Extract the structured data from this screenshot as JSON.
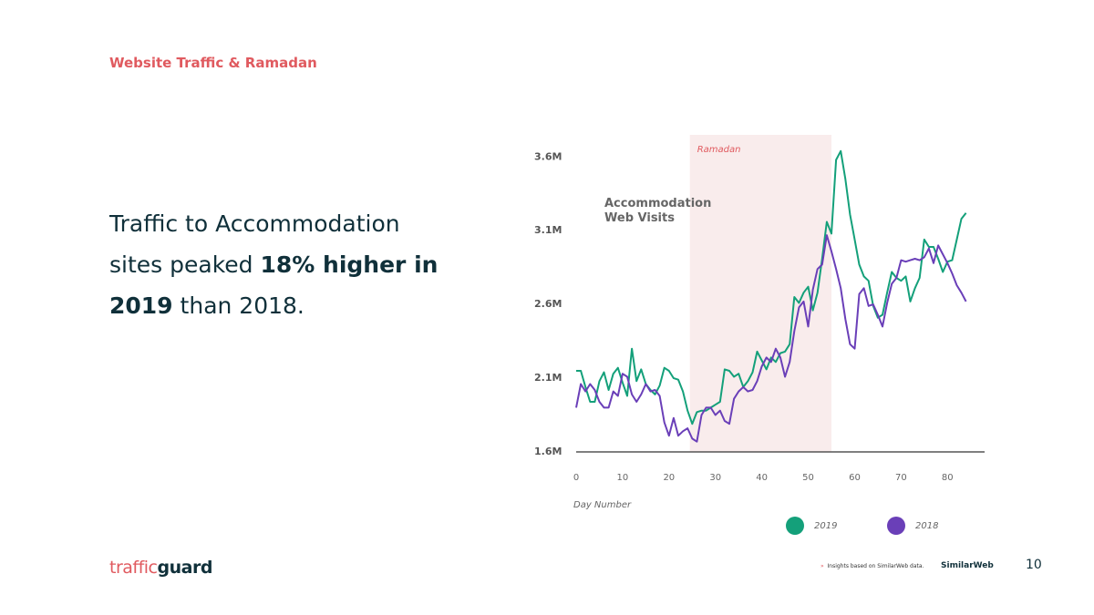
{
  "slide_title": "Website Traffic & Ramadan",
  "headline": [
    "Traffic to Accommodation sites peaked ",
    "18% higher in 2019",
    " than 2018."
  ],
  "logo": [
    "traffic",
    "guard"
  ],
  "footnote": "Insights based on SimilarWeb data.",
  "source_brand": "SimilarWeb",
  "page_number": "10",
  "chart_data": {
    "type": "line",
    "annotation": "Accommodation Web Visits",
    "x_label": "Day Number",
    "shaded_region": {
      "label": "Ramadan",
      "start": 24.5,
      "end": 55
    },
    "x": [
      0,
      1,
      2,
      3,
      4,
      5,
      6,
      7,
      8,
      9,
      10,
      11,
      12,
      13,
      14,
      15,
      16,
      17,
      18,
      19,
      20,
      21,
      22,
      23,
      24,
      25,
      26,
      27,
      28,
      29,
      30,
      31,
      32,
      33,
      34,
      35,
      36,
      37,
      38,
      39,
      40,
      41,
      42,
      43,
      44,
      45,
      46,
      47,
      48,
      49,
      50,
      51,
      52,
      53,
      54,
      55,
      56,
      57,
      58,
      59,
      60,
      61,
      62,
      63,
      64,
      65,
      66,
      67,
      68,
      69,
      70,
      71,
      72,
      73,
      74,
      75,
      76,
      77,
      78,
      79,
      80,
      81,
      82,
      83,
      84
    ],
    "series": [
      {
        "name": "2019",
        "color": "#14a07a",
        "values": [
          2.15,
          2.15,
          2.04,
          1.94,
          1.94,
          2.08,
          2.14,
          2.02,
          2.13,
          2.17,
          2.07,
          1.98,
          2.3,
          2.08,
          2.16,
          2.06,
          2.02,
          1.99,
          2.05,
          2.17,
          2.15,
          2.1,
          2.09,
          2.01,
          1.88,
          1.79,
          1.87,
          1.88,
          1.88,
          1.9,
          1.92,
          1.94,
          2.16,
          2.15,
          2.11,
          2.13,
          2.04,
          2.08,
          2.14,
          2.28,
          2.22,
          2.16,
          2.24,
          2.21,
          2.27,
          2.28,
          2.33,
          2.65,
          2.61,
          2.68,
          2.72,
          2.56,
          2.68,
          2.91,
          3.16,
          3.08,
          3.58,
          3.64,
          3.45,
          3.21,
          3.04,
          2.87,
          2.79,
          2.76,
          2.59,
          2.51,
          2.53,
          2.68,
          2.82,
          2.78,
          2.76,
          2.79,
          2.62,
          2.71,
          2.78,
          3.04,
          2.99,
          2.99,
          2.91,
          2.82,
          2.89,
          2.9,
          3.04,
          3.18,
          3.22
        ]
      },
      {
        "name": "2018",
        "color": "#6a3fb8",
        "values": [
          1.9,
          2.06,
          2.01,
          2.06,
          2.02,
          1.94,
          1.9,
          1.9,
          2.01,
          1.98,
          2.13,
          2.11,
          1.99,
          1.94,
          1.99,
          2.06,
          2.01,
          2.02,
          1.98,
          1.8,
          1.71,
          1.83,
          1.71,
          1.74,
          1.76,
          1.69,
          1.67,
          1.85,
          1.9,
          1.9,
          1.85,
          1.88,
          1.81,
          1.79,
          1.96,
          2.01,
          2.04,
          2.01,
          2.02,
          2.08,
          2.18,
          2.24,
          2.21,
          2.3,
          2.24,
          2.11,
          2.21,
          2.42,
          2.58,
          2.62,
          2.45,
          2.7,
          2.84,
          2.87,
          3.07,
          2.96,
          2.84,
          2.71,
          2.5,
          2.33,
          2.3,
          2.67,
          2.71,
          2.59,
          2.6,
          2.53,
          2.45,
          2.61,
          2.74,
          2.78,
          2.9,
          2.89,
          2.9,
          2.91,
          2.9,
          2.92,
          2.98,
          2.88,
          3.0,
          2.94,
          2.88,
          2.81,
          2.73,
          2.68,
          2.62
        ]
      }
    ],
    "xlim": [
      0,
      88
    ],
    "xticks": [
      0,
      10,
      20,
      30,
      40,
      50,
      60,
      70,
      80
    ],
    "ylim": [
      1.6,
      3.75
    ],
    "yticks": [
      {
        "value": 1.6,
        "label": "1.6M"
      },
      {
        "value": 2.1,
        "label": "2.1M"
      },
      {
        "value": 2.6,
        "label": "2.6M"
      },
      {
        "value": 3.1,
        "label": "3.1M"
      },
      {
        "value": 3.6,
        "label": "3.6M"
      }
    ],
    "grid": false
  }
}
